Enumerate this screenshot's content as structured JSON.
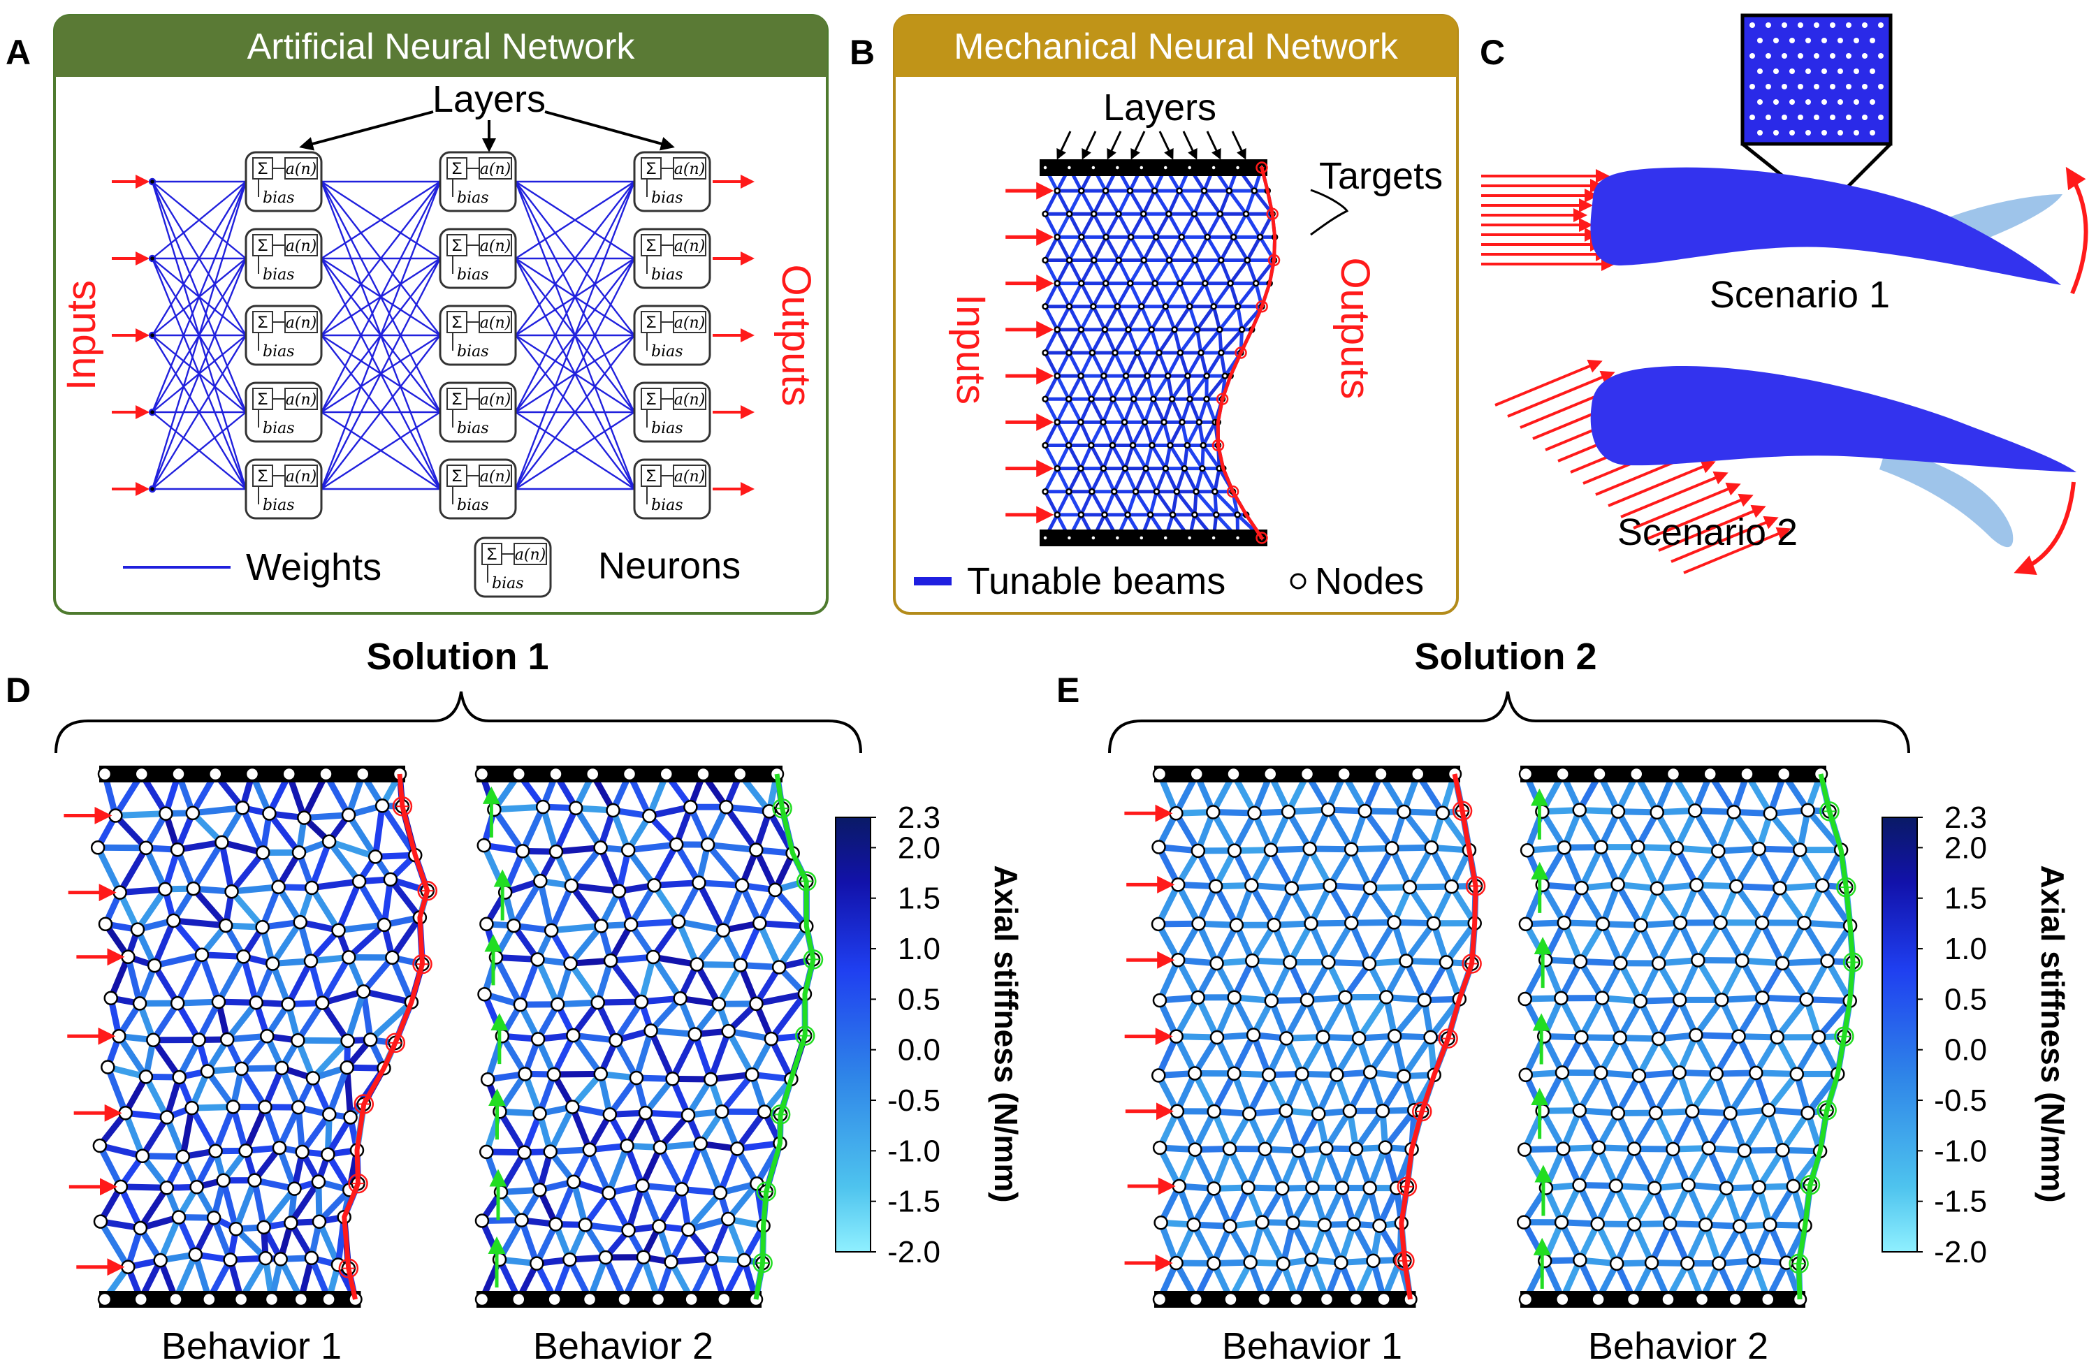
{
  "panels": {
    "A": {
      "letter": "A",
      "title": "Artificial Neural Network",
      "layers_label": "Layers",
      "inputs_label": "Inputs",
      "outputs_label": "Outputs",
      "legend_weights": "Weights",
      "legend_neurons": "Neurons",
      "neuron_sigma": "Σ",
      "neuron_act": "a(n)",
      "neuron_bias": "bias"
    },
    "B": {
      "letter": "B",
      "title": "Mechanical Neural Network",
      "layers_label": "Layers",
      "targets_label": "Targets",
      "inputs_label": "Inputs",
      "outputs_label": "Outputs",
      "legend_beams": "Tunable beams",
      "legend_nodes": "Nodes"
    },
    "C": {
      "letter": "C",
      "scenario1": "Scenario 1",
      "scenario2": "Scenario 2"
    },
    "D": {
      "letter": "D",
      "solution": "Solution 1",
      "behavior1": "Behavior 1",
      "behavior2": "Behavior 2"
    },
    "E": {
      "letter": "E",
      "solution": "Solution 2",
      "behavior1": "Behavior 1",
      "behavior2": "Behavior 2"
    }
  },
  "colorbar": {
    "title": "Axial stiffness (N/mm)",
    "ticks": [
      "2.3",
      "2.0",
      "1.5",
      "1.0",
      "0.5",
      "0.0",
      "-0.5",
      "-1.0",
      "-1.5",
      "-2.0"
    ]
  },
  "colors": {
    "ann_header": "#5a7a35",
    "mnn_header": "#c09418",
    "ann_border": "#4e7a2e",
    "mnn_border": "#b38b1a",
    "beam_blue": "#1f1fe0",
    "input_red": "#ff1a1a",
    "green": "#22dd22",
    "airfoil": "#3333ee",
    "airfoil_light": "#9ec4ea"
  }
}
